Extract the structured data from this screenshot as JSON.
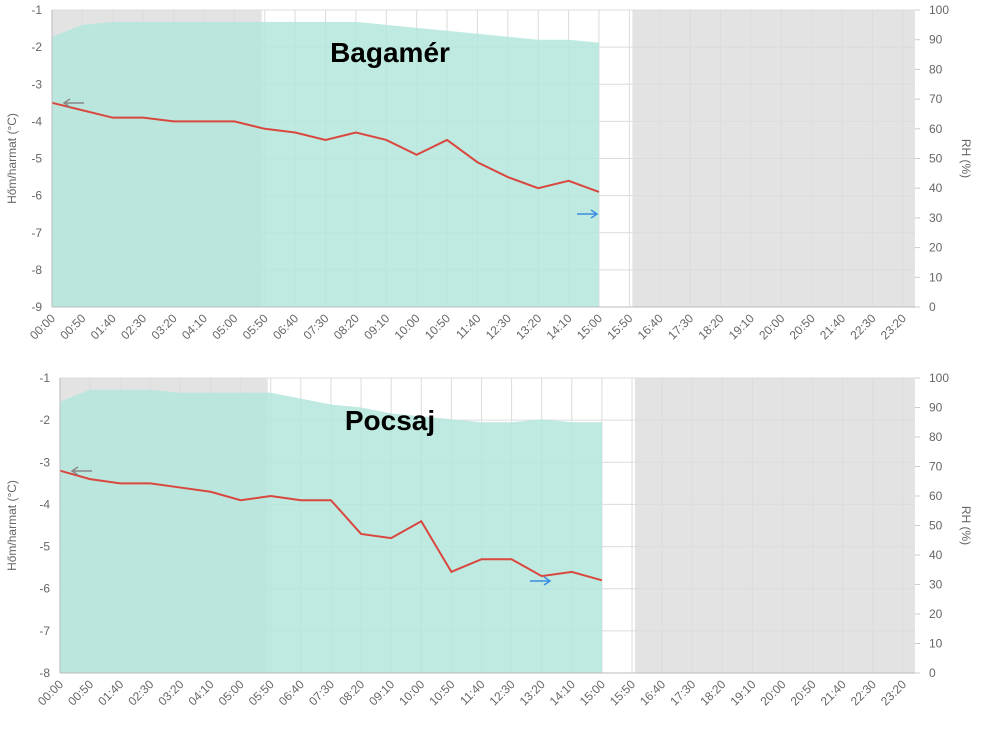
{
  "chart_data": [
    {
      "type": "line",
      "title": "Bagamér",
      "ylabel": "Hőm/harmat (°C)",
      "y2label": "RH (%)",
      "categories": [
        "00:00",
        "00:50",
        "01:40",
        "02:30",
        "03:20",
        "04:10",
        "05:00",
        "05:50",
        "06:40",
        "07:30",
        "08:20",
        "09:10",
        "10:00",
        "10:50",
        "11:40",
        "12:30",
        "13:20",
        "14:10",
        "15:00",
        "15:50",
        "16:40",
        "17:30",
        "18:20",
        "19:10",
        "20:00",
        "20:50",
        "21:40",
        "22:30",
        "23:20"
      ],
      "series": [
        {
          "name": "RH",
          "color": "#b3e6dc",
          "axis": "y2",
          "values": [
            91,
            95,
            96,
            96,
            96,
            96,
            96,
            96,
            96,
            96,
            96,
            95,
            94,
            93,
            92,
            91,
            90,
            90,
            89,
            null,
            null,
            null,
            null,
            null,
            null,
            null,
            null,
            null,
            null
          ]
        },
        {
          "name": "Hőm",
          "color": "#d9473f",
          "values": [
            -3.5,
            -3.7,
            -3.9,
            -3.9,
            -4.0,
            -4.0,
            -4.0,
            -4.2,
            -4.3,
            -4.5,
            -4.3,
            -4.5,
            -4.9,
            -4.5,
            -5.1,
            -5.5,
            -5.8,
            -5.6,
            -5.9,
            null,
            null,
            null,
            null,
            null,
            null,
            null,
            null,
            null,
            null
          ]
        }
      ],
      "ylim": [
        -9,
        -1
      ],
      "yticks": [
        -9,
        -8,
        -7,
        -6,
        -5,
        -4,
        -3,
        -2,
        -1
      ],
      "y2lim": [
        0,
        100
      ],
      "y2ticks": [
        0,
        10,
        20,
        30,
        40,
        50,
        60,
        70,
        80,
        90,
        100
      ],
      "grid": true
    },
    {
      "type": "line",
      "title": "Pocsaj",
      "ylabel": "Hőm/harmat (°C)",
      "y2label": "RH (%)",
      "categories": [
        "00:00",
        "00:50",
        "01:40",
        "02:30",
        "03:20",
        "04:10",
        "05:00",
        "05:50",
        "06:40",
        "07:30",
        "08:20",
        "09:10",
        "10:00",
        "10:50",
        "11:40",
        "12:30",
        "13:20",
        "14:10",
        "15:00",
        "15:50",
        "16:40",
        "17:30",
        "18:20",
        "19:10",
        "20:00",
        "20:50",
        "21:40",
        "22:30",
        "23:20"
      ],
      "series": [
        {
          "name": "RH",
          "color": "#b3e6dc",
          "axis": "y2",
          "values": [
            92,
            96,
            96,
            96,
            95,
            95,
            95,
            95,
            93,
            91,
            90,
            88,
            87,
            86,
            85,
            85,
            86,
            85,
            85,
            null,
            null,
            null,
            null,
            null,
            null,
            null,
            null,
            null,
            null
          ]
        },
        {
          "name": "Hőm",
          "color": "#d9473f",
          "values": [
            -3.2,
            -3.4,
            -3.5,
            -3.5,
            -3.6,
            -3.7,
            -3.9,
            -3.8,
            -3.9,
            -3.9,
            -4.7,
            -4.8,
            -4.4,
            -5.6,
            -5.3,
            -5.3,
            -5.7,
            -5.6,
            -5.8,
            null,
            null,
            null,
            null,
            null,
            null,
            null,
            null,
            null,
            null
          ]
        }
      ],
      "ylim": [
        -8,
        -1
      ],
      "yticks": [
        -8,
        -7,
        -6,
        -5,
        -4,
        -3,
        -2,
        -1
      ],
      "y2lim": [
        0,
        100
      ],
      "y2ticks": [
        0,
        10,
        20,
        30,
        40,
        50,
        60,
        70,
        80,
        90,
        100
      ],
      "grid": true
    }
  ]
}
